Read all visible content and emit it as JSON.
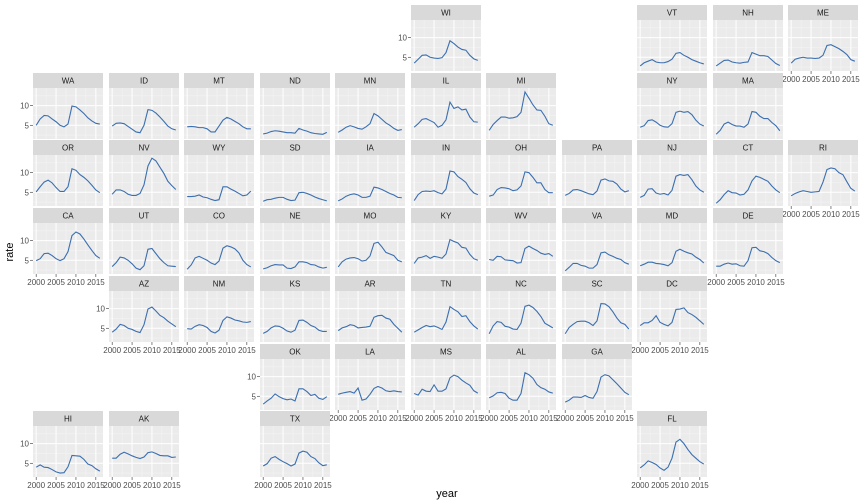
{
  "chart_data": {
    "type": "line",
    "xlabel": "year",
    "ylabel": "rate",
    "x": [
      2000,
      2001,
      2002,
      2003,
      2004,
      2005,
      2006,
      2007,
      2008,
      2009,
      2010,
      2011,
      2012,
      2013,
      2014,
      2015,
      2016
    ],
    "x_ticks": [
      2000,
      2005,
      2010,
      2015
    ],
    "x_tick_labels": [
      "2000",
      "2005",
      "2010",
      "2015"
    ],
    "ylim": [
      1.5,
      14.5
    ],
    "y_ticks": [
      5,
      10
    ],
    "y_tick_labels": [
      "5",
      "10"
    ],
    "line_color": "#3b6fb0",
    "panel_background": "#ebebeb",
    "strip_background": "#d9d9d9",
    "grid": true,
    "panels": [
      {
        "state": "WI",
        "values": [
          3.5,
          4.5,
          5.5,
          5.6,
          5.0,
          4.8,
          4.7,
          4.9,
          6.2,
          9.2,
          8.5,
          7.6,
          7.0,
          6.8,
          5.5,
          4.6,
          4.2
        ]
      },
      {
        "state": "VT",
        "values": [
          2.8,
          3.6,
          4.0,
          4.4,
          3.8,
          3.6,
          3.6,
          3.9,
          4.5,
          6.0,
          6.2,
          5.5,
          5.0,
          4.4,
          4.0,
          3.6,
          3.3
        ]
      },
      {
        "state": "NH",
        "values": [
          2.8,
          3.5,
          4.2,
          4.3,
          3.8,
          3.6,
          3.5,
          3.7,
          3.8,
          6.2,
          5.8,
          5.4,
          5.4,
          5.2,
          4.3,
          3.4,
          2.9
        ]
      },
      {
        "state": "ME",
        "values": [
          3.5,
          4.5,
          4.8,
          5.0,
          4.8,
          4.8,
          4.7,
          4.8,
          5.5,
          8.0,
          8.2,
          7.7,
          7.2,
          6.5,
          5.7,
          4.4,
          4.0
        ]
      },
      {
        "state": "WA",
        "values": [
          5.0,
          6.6,
          7.5,
          7.4,
          6.6,
          5.9,
          5.0,
          4.6,
          5.3,
          9.9,
          9.7,
          8.9,
          8.0,
          6.9,
          6.1,
          5.5,
          5.3
        ]
      },
      {
        "state": "ID",
        "values": [
          4.8,
          5.5,
          5.6,
          5.4,
          4.7,
          4.0,
          3.3,
          3.1,
          5.0,
          9.0,
          8.8,
          8.1,
          7.1,
          6.0,
          4.8,
          4.1,
          3.8
        ]
      },
      {
        "state": "MT",
        "values": [
          4.6,
          4.7,
          4.6,
          4.4,
          4.4,
          4.1,
          3.3,
          3.3,
          4.8,
          6.3,
          7.0,
          6.6,
          6.0,
          5.4,
          4.6,
          4.1,
          4.1
        ]
      },
      {
        "state": "ND",
        "values": [
          2.8,
          3.0,
          3.4,
          3.6,
          3.5,
          3.3,
          3.1,
          3.1,
          3.0,
          4.2,
          3.8,
          3.5,
          3.1,
          2.9,
          2.8,
          2.7,
          3.2
        ]
      },
      {
        "state": "MN",
        "values": [
          3.2,
          3.8,
          4.5,
          4.9,
          4.6,
          4.2,
          4.0,
          4.6,
          5.4,
          8.0,
          7.4,
          6.5,
          5.6,
          5.0,
          4.2,
          3.7,
          3.9
        ]
      },
      {
        "state": "IL",
        "values": [
          4.5,
          5.4,
          6.5,
          6.7,
          6.2,
          5.7,
          4.5,
          5.0,
          6.4,
          10.9,
          9.3,
          9.7,
          8.9,
          9.1,
          7.1,
          5.9,
          5.8
        ]
      },
      {
        "state": "MI",
        "values": [
          3.7,
          5.2,
          6.2,
          7.1,
          7.1,
          6.8,
          6.9,
          7.2,
          8.3,
          13.5,
          11.9,
          10.2,
          8.9,
          8.8,
          7.3,
          5.4,
          5.0
        ]
      },
      {
        "state": "NY",
        "values": [
          4.5,
          4.9,
          6.2,
          6.4,
          5.8,
          5.0,
          4.6,
          4.5,
          5.4,
          8.3,
          8.6,
          8.3,
          8.5,
          7.7,
          6.3,
          5.3,
          4.8
        ]
      },
      {
        "state": "MA",
        "values": [
          2.7,
          3.7,
          5.3,
          5.8,
          5.2,
          4.8,
          4.8,
          4.5,
          5.3,
          8.5,
          8.3,
          7.3,
          6.7,
          6.7,
          5.7,
          4.9,
          3.6
        ]
      },
      {
        "state": "OR",
        "values": [
          5.1,
          6.4,
          7.6,
          8.1,
          7.4,
          6.2,
          5.2,
          5.2,
          6.4,
          11.0,
          10.6,
          9.5,
          8.8,
          7.9,
          6.8,
          5.6,
          4.9
        ]
      },
      {
        "state": "NV",
        "values": [
          4.5,
          5.6,
          5.6,
          5.2,
          4.5,
          4.2,
          4.2,
          4.7,
          6.9,
          11.7,
          13.7,
          13.0,
          11.4,
          9.8,
          7.8,
          6.7,
          5.7
        ]
      },
      {
        "state": "WY",
        "values": [
          3.9,
          3.9,
          4.0,
          4.3,
          3.8,
          3.6,
          3.2,
          2.9,
          3.1,
          6.4,
          6.4,
          5.8,
          5.3,
          4.7,
          4.1,
          4.3,
          5.3
        ]
      },
      {
        "state": "SD",
        "values": [
          2.7,
          3.1,
          3.2,
          3.5,
          3.7,
          3.7,
          3.2,
          2.9,
          3.0,
          4.9,
          5.0,
          4.7,
          4.3,
          3.8,
          3.4,
          3.1,
          2.8
        ]
      },
      {
        "state": "IA",
        "values": [
          2.8,
          3.3,
          4.0,
          4.4,
          4.6,
          4.3,
          3.7,
          3.7,
          4.0,
          6.3,
          6.1,
          5.7,
          5.2,
          4.7,
          4.3,
          3.7,
          3.6
        ]
      },
      {
        "state": "IN",
        "values": [
          2.9,
          4.4,
          5.2,
          5.3,
          5.2,
          5.4,
          4.9,
          4.6,
          5.8,
          10.4,
          10.2,
          9.0,
          8.3,
          7.5,
          5.9,
          4.8,
          4.4
        ]
      },
      {
        "state": "OH",
        "values": [
          4.0,
          4.3,
          5.7,
          6.2,
          6.1,
          5.9,
          5.4,
          5.6,
          6.6,
          10.2,
          10.0,
          8.8,
          7.4,
          7.4,
          5.7,
          4.9,
          4.9
        ]
      },
      {
        "state": "PA",
        "values": [
          4.2,
          4.7,
          5.6,
          5.7,
          5.4,
          5.0,
          4.6,
          4.4,
          5.3,
          8.1,
          8.4,
          7.9,
          7.8,
          7.1,
          5.8,
          5.1,
          5.4
        ]
      },
      {
        "state": "NJ",
        "values": [
          3.7,
          4.2,
          5.8,
          5.9,
          4.8,
          4.5,
          4.7,
          4.3,
          5.5,
          9.1,
          9.5,
          9.3,
          9.5,
          8.2,
          6.6,
          5.6,
          5.0
        ]
      },
      {
        "state": "CT",
        "values": [
          2.2,
          3.1,
          4.4,
          5.4,
          4.9,
          4.8,
          4.3,
          4.5,
          5.6,
          7.9,
          9.1,
          8.8,
          8.3,
          7.8,
          6.6,
          5.6,
          4.9
        ]
      },
      {
        "state": "RI",
        "values": [
          4.1,
          4.7,
          5.1,
          5.4,
          5.2,
          5.0,
          5.1,
          5.2,
          7.6,
          10.8,
          11.2,
          11.0,
          10.0,
          9.5,
          7.7,
          6.0,
          5.3
        ]
      },
      {
        "state": "CA",
        "values": [
          4.9,
          5.4,
          6.7,
          6.8,
          6.2,
          5.4,
          4.9,
          5.4,
          7.2,
          11.3,
          12.2,
          11.7,
          10.4,
          8.9,
          7.5,
          6.2,
          5.5
        ]
      },
      {
        "state": "UT",
        "values": [
          3.4,
          4.4,
          5.8,
          5.6,
          5.0,
          4.1,
          3.0,
          2.6,
          3.6,
          7.8,
          8.0,
          6.7,
          5.4,
          4.4,
          3.6,
          3.5,
          3.4
        ]
      },
      {
        "state": "CO",
        "values": [
          2.7,
          3.8,
          5.6,
          6.0,
          5.5,
          5.0,
          4.3,
          3.9,
          4.8,
          8.1,
          8.7,
          8.4,
          7.9,
          6.9,
          5.0,
          3.9,
          3.3
        ]
      },
      {
        "state": "NE",
        "values": [
          2.8,
          3.1,
          3.6,
          3.9,
          3.8,
          3.8,
          3.0,
          2.9,
          3.3,
          4.6,
          4.6,
          4.4,
          3.9,
          3.8,
          3.3,
          3.0,
          3.2
        ]
      },
      {
        "state": "MO",
        "values": [
          3.3,
          4.6,
          5.3,
          5.6,
          5.7,
          5.4,
          4.8,
          5.0,
          6.1,
          9.3,
          9.6,
          8.4,
          7.0,
          6.6,
          6.2,
          5.0,
          4.6
        ]
      },
      {
        "state": "KY",
        "values": [
          4.2,
          5.6,
          5.8,
          6.2,
          5.5,
          6.0,
          5.8,
          5.5,
          6.6,
          10.3,
          9.8,
          9.4,
          8.3,
          8.1,
          6.5,
          5.4,
          5.0
        ]
      },
      {
        "state": "WV",
        "values": [
          5.2,
          5.0,
          6.0,
          5.9,
          5.1,
          5.0,
          4.9,
          4.3,
          4.4,
          8.0,
          8.6,
          8.0,
          7.5,
          6.8,
          6.5,
          6.7,
          6.0
        ]
      },
      {
        "state": "VA",
        "values": [
          2.3,
          3.2,
          4.2,
          4.2,
          3.7,
          3.5,
          3.0,
          3.0,
          3.9,
          6.9,
          7.1,
          6.4,
          6.0,
          5.5,
          5.2,
          4.4,
          4.0
        ]
      },
      {
        "state": "MD",
        "values": [
          3.6,
          4.0,
          4.5,
          4.5,
          4.2,
          4.1,
          3.9,
          3.6,
          4.4,
          7.3,
          7.8,
          7.3,
          6.9,
          6.6,
          5.8,
          5.2,
          4.3
        ]
      },
      {
        "state": "DE",
        "values": [
          3.5,
          3.5,
          4.0,
          4.3,
          4.0,
          4.1,
          3.6,
          3.5,
          4.9,
          8.2,
          8.3,
          7.4,
          7.2,
          6.7,
          5.7,
          4.9,
          4.4
        ]
      },
      {
        "state": "AZ",
        "values": [
          4.0,
          4.8,
          6.0,
          5.7,
          5.0,
          4.7,
          4.2,
          3.9,
          5.9,
          9.9,
          10.4,
          9.4,
          8.3,
          7.7,
          6.8,
          6.1,
          5.4
        ]
      },
      {
        "state": "NM",
        "values": [
          4.9,
          4.8,
          5.5,
          5.9,
          5.7,
          5.2,
          4.2,
          3.8,
          4.5,
          7.0,
          7.9,
          7.6,
          7.1,
          6.9,
          6.6,
          6.5,
          6.7
        ]
      },
      {
        "state": "KS",
        "values": [
          3.7,
          4.2,
          5.1,
          5.6,
          5.5,
          5.0,
          4.3,
          4.0,
          4.5,
          7.0,
          7.1,
          6.5,
          5.7,
          5.3,
          4.5,
          4.2,
          4.2
        ]
      },
      {
        "state": "AR",
        "values": [
          4.4,
          5.1,
          5.4,
          5.9,
          5.7,
          5.1,
          5.2,
          5.3,
          5.5,
          7.8,
          8.2,
          8.3,
          7.6,
          7.3,
          6.0,
          5.0,
          4.0
        ]
      },
      {
        "state": "TN",
        "values": [
          4.0,
          4.6,
          5.2,
          5.7,
          5.4,
          5.6,
          5.2,
          4.7,
          6.6,
          10.5,
          9.8,
          9.2,
          8.0,
          8.2,
          6.7,
          5.6,
          4.8
        ]
      },
      {
        "state": "NC",
        "values": [
          3.6,
          5.6,
          6.7,
          6.5,
          5.5,
          5.3,
          4.8,
          4.7,
          6.3,
          10.6,
          10.9,
          10.3,
          9.3,
          8.0,
          6.3,
          5.7,
          5.1
        ]
      },
      {
        "state": "SC",
        "values": [
          3.6,
          5.2,
          6.0,
          6.7,
          6.8,
          6.8,
          6.4,
          5.7,
          6.9,
          11.3,
          11.2,
          10.5,
          9.2,
          7.6,
          6.4,
          6.0,
          4.8
        ]
      },
      {
        "state": "DC",
        "values": [
          5.7,
          6.4,
          6.4,
          7.0,
          8.2,
          6.5,
          6.0,
          5.6,
          6.5,
          9.8,
          9.9,
          10.2,
          9.0,
          8.5,
          7.8,
          6.9,
          6.0
        ]
      },
      {
        "state": "OK",
        "values": [
          3.0,
          3.8,
          4.5,
          5.6,
          4.9,
          4.4,
          4.1,
          4.3,
          3.8,
          6.9,
          6.9,
          6.2,
          5.2,
          5.5,
          4.5,
          4.2,
          4.9
        ]
      },
      {
        "state": "LA",
        "values": [
          5.5,
          5.8,
          6.0,
          6.2,
          5.8,
          7.1,
          4.0,
          4.3,
          5.5,
          7.0,
          7.5,
          7.1,
          6.4,
          6.2,
          6.4,
          6.2,
          6.1
        ]
      },
      {
        "state": "MS",
        "values": [
          5.7,
          5.3,
          6.8,
          6.3,
          6.2,
          7.9,
          6.3,
          6.3,
          6.9,
          9.7,
          10.4,
          10.0,
          9.1,
          8.4,
          7.8,
          6.4,
          5.8
        ]
      },
      {
        "state": "AL",
        "values": [
          4.6,
          5.1,
          5.9,
          6.0,
          5.7,
          4.5,
          4.0,
          4.0,
          5.7,
          11.0,
          10.5,
          9.6,
          8.0,
          7.2,
          6.8,
          6.1,
          5.8
        ]
      },
      {
        "state": "GA",
        "values": [
          3.5,
          4.0,
          4.8,
          4.8,
          4.7,
          5.2,
          4.7,
          4.5,
          6.2,
          9.9,
          10.5,
          10.2,
          9.2,
          8.2,
          7.1,
          6.0,
          5.4
        ]
      },
      {
        "state": "HI",
        "values": [
          4.0,
          4.6,
          4.0,
          3.9,
          3.4,
          2.8,
          2.5,
          2.6,
          4.1,
          7.0,
          6.9,
          6.8,
          6.0,
          4.8,
          4.4,
          3.6,
          3.0
        ]
      },
      {
        "state": "AK",
        "values": [
          6.3,
          6.3,
          7.3,
          7.8,
          7.4,
          6.9,
          6.5,
          6.2,
          6.6,
          7.7,
          7.9,
          7.5,
          7.0,
          6.9,
          6.9,
          6.5,
          6.6
        ]
      },
      {
        "state": "TX",
        "values": [
          4.3,
          4.9,
          6.3,
          6.7,
          6.0,
          5.4,
          4.9,
          4.3,
          4.8,
          7.6,
          8.1,
          7.8,
          6.7,
          6.2,
          5.1,
          4.4,
          4.6
        ]
      },
      {
        "state": "FL",
        "values": [
          3.8,
          4.6,
          5.6,
          5.2,
          4.7,
          3.8,
          3.2,
          4.0,
          6.3,
          10.4,
          11.1,
          10.0,
          8.5,
          7.2,
          6.3,
          5.4,
          4.8
        ]
      }
    ]
  }
}
